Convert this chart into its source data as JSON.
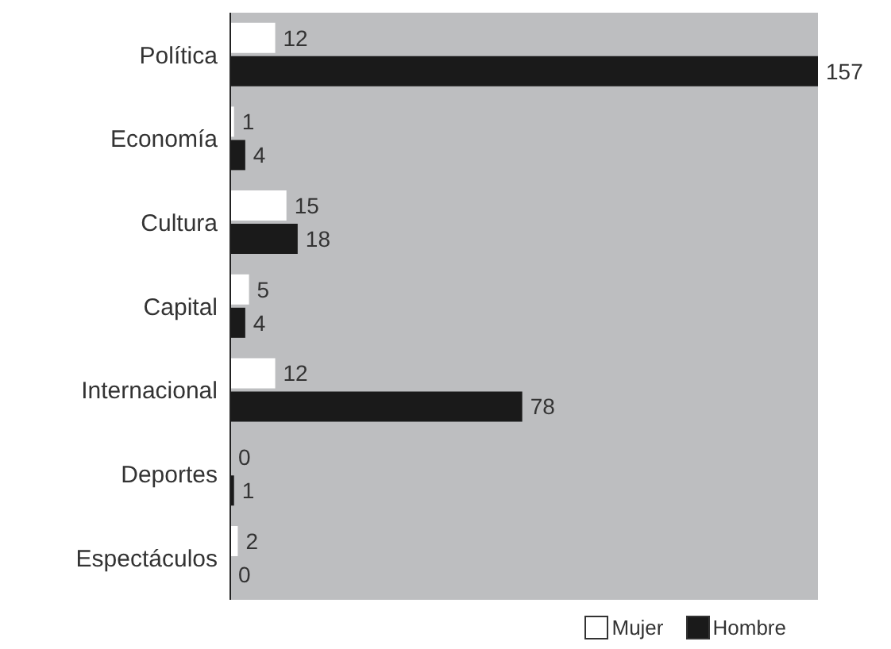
{
  "chart_data": {
    "type": "bar",
    "orientation": "horizontal",
    "categories": [
      "Política",
      "Economía",
      "Cultura",
      "Capital",
      "Internacional",
      "Deportes",
      "Espectáculos"
    ],
    "series": [
      {
        "name": "Mujer",
        "color": "#ffffff",
        "values": [
          12,
          1,
          15,
          5,
          12,
          0,
          2
        ]
      },
      {
        "name": "Hombre",
        "color": "#1a1a1a",
        "values": [
          157,
          4,
          18,
          4,
          78,
          1,
          0
        ]
      }
    ],
    "data_labels": true,
    "legend": "bottom right"
  }
}
